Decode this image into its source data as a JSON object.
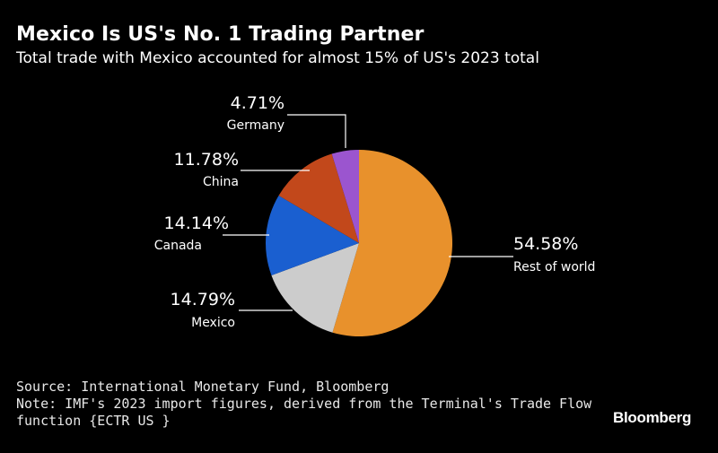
{
  "header": {
    "title": "Mexico Is US's No. 1 Trading Partner",
    "subtitle": "Total trade with Mexico accounted for almost 15% of US's 2023 total"
  },
  "chart_data": {
    "type": "pie",
    "title": "Mexico Is US's No. 1 Trading Partner",
    "subtitle": "Total trade with Mexico accounted for almost 15% of US's 2023 total",
    "unit": "%",
    "slices": [
      {
        "label": "Rest of world",
        "value": 54.58,
        "value_label": "54.58%",
        "color": "#e8912c"
      },
      {
        "label": "Mexico",
        "value": 14.79,
        "value_label": "14.79%",
        "color": "#cccccc"
      },
      {
        "label": "Canada",
        "value": 14.14,
        "value_label": "14.14%",
        "color": "#1a5fd0"
      },
      {
        "label": "China",
        "value": 11.78,
        "value_label": "11.78%",
        "color": "#c2481b"
      },
      {
        "label": "Germany",
        "value": 4.71,
        "value_label": "4.71%",
        "color": "#9b55cf"
      }
    ],
    "legend": "none (callout labels beside slices)"
  },
  "footer": {
    "source": "Source: International Monetary Fund, Bloomberg",
    "note_line1": "Note: IMF's 2023 import figures, derived from the Terminal's Trade Flow",
    "note_line2": "function {ECTR US }"
  },
  "brand": {
    "name": "Bloomberg"
  }
}
